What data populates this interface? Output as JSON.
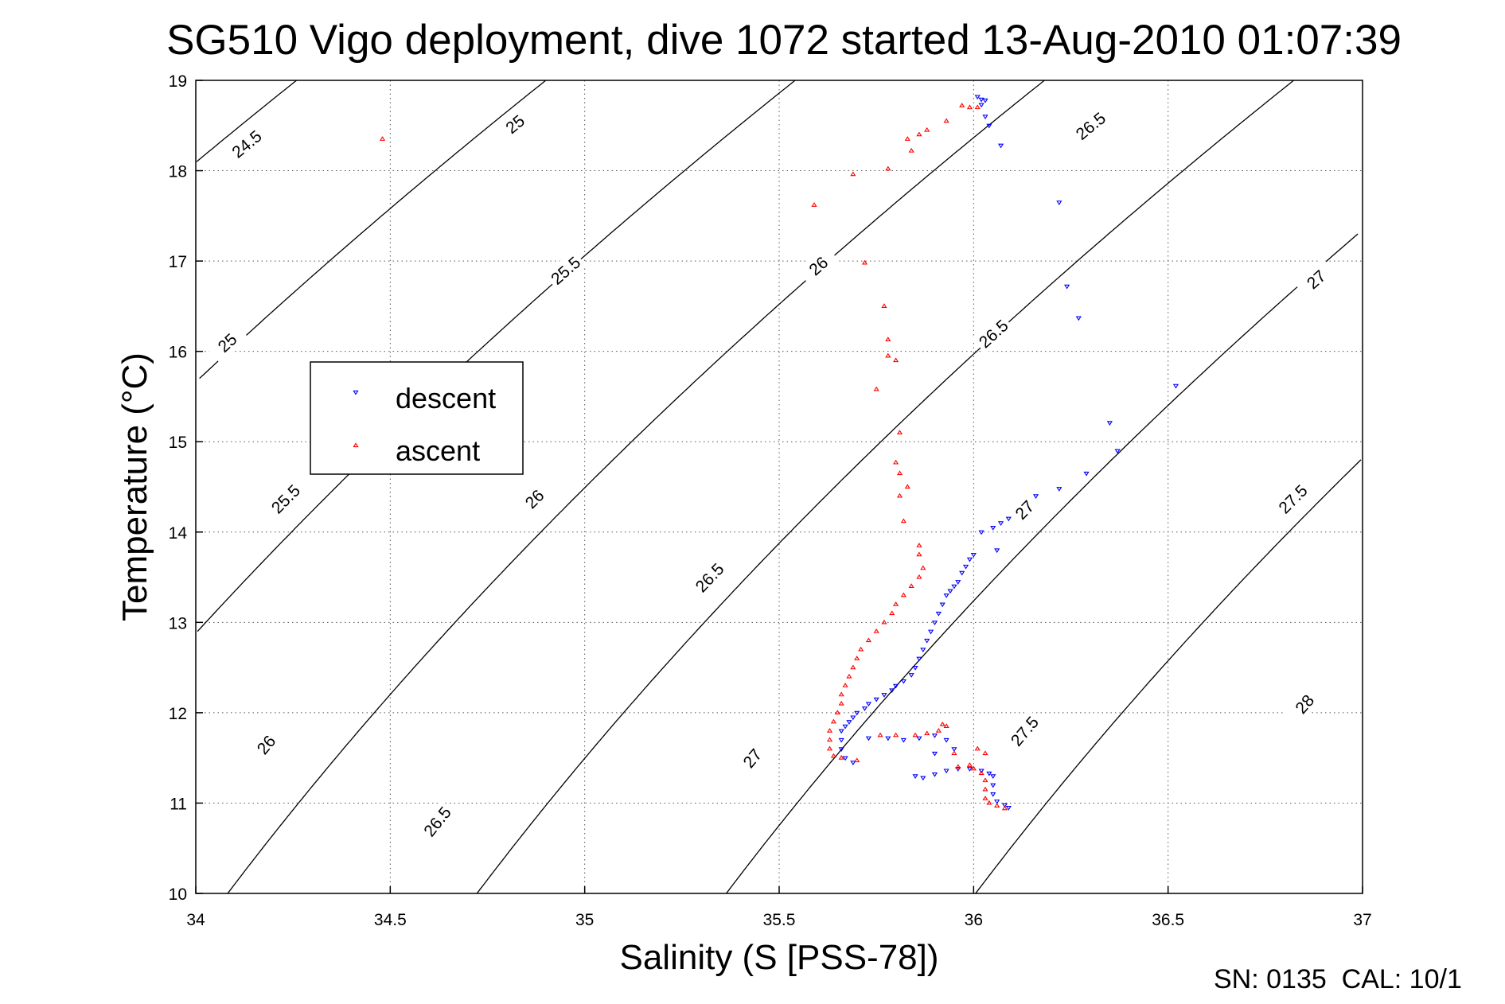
{
  "chart_data": {
    "type": "scatter",
    "title": "SG510 Vigo deployment, dive 1072 started 13-Aug-2010 01:07:39",
    "xlabel": "Salinity (S [PSS-78])",
    "ylabel": "Temperature (°C)",
    "xlim": [
      34,
      37
    ],
    "ylim": [
      10,
      19
    ],
    "xticks": [
      "34",
      "34.5",
      "35",
      "35.5",
      "36",
      "36.5",
      "37"
    ],
    "yticks": [
      "10",
      "11",
      "12",
      "13",
      "14",
      "15",
      "16",
      "17",
      "18",
      "19"
    ],
    "grid": true,
    "legend_position": "left",
    "colors": {
      "descent": "#0000ff",
      "ascent": "#ff0000",
      "contour": "#000000"
    },
    "density_contours": {
      "levels": [
        24.5,
        25,
        25.5,
        26,
        26.5,
        27,
        27.5,
        28
      ],
      "labels": [
        {
          "text": "24.5",
          "x": 34.13,
          "y": 18.3
        },
        {
          "text": "25",
          "x": 34.82,
          "y": 18.52
        },
        {
          "text": "25",
          "x": 34.08,
          "y": 16.1
        },
        {
          "text": "25.5",
          "x": 34.95,
          "y": 16.9
        },
        {
          "text": "25.5",
          "x": 34.23,
          "y": 14.37
        },
        {
          "text": "26",
          "x": 35.6,
          "y": 16.95
        },
        {
          "text": "26",
          "x": 34.87,
          "y": 14.37
        },
        {
          "text": "26",
          "x": 34.18,
          "y": 11.65
        },
        {
          "text": "26.5",
          "x": 36.3,
          "y": 18.5
        },
        {
          "text": "26.5",
          "x": 36.05,
          "y": 16.2
        },
        {
          "text": "26.5",
          "x": 35.32,
          "y": 13.5
        },
        {
          "text": "26.5",
          "x": 34.62,
          "y": 10.8
        },
        {
          "text": "27",
          "x": 36.88,
          "y": 16.8
        },
        {
          "text": "27",
          "x": 36.13,
          "y": 14.25
        },
        {
          "text": "27",
          "x": 35.43,
          "y": 11.5
        },
        {
          "text": "27.5",
          "x": 36.82,
          "y": 14.37
        },
        {
          "text": "27.5",
          "x": 36.13,
          "y": 11.8
        },
        {
          "text": "28",
          "x": 36.85,
          "y": 12.1
        }
      ]
    },
    "series": [
      {
        "name": "descent",
        "marker": "triangle-down",
        "points": [
          [
            36.01,
            18.82
          ],
          [
            36.02,
            18.79
          ],
          [
            36.03,
            18.78
          ],
          [
            36.02,
            18.73
          ],
          [
            36.03,
            18.6
          ],
          [
            36.04,
            18.5
          ],
          [
            36.07,
            18.28
          ],
          [
            36.22,
            17.65
          ],
          [
            36.24,
            16.72
          ],
          [
            36.27,
            16.37
          ],
          [
            36.52,
            15.62
          ],
          [
            36.35,
            15.21
          ],
          [
            36.37,
            14.9
          ],
          [
            36.29,
            14.65
          ],
          [
            36.22,
            14.48
          ],
          [
            36.16,
            14.4
          ],
          [
            36.09,
            14.15
          ],
          [
            36.07,
            14.1
          ],
          [
            36.05,
            14.05
          ],
          [
            36.02,
            14.0
          ],
          [
            36.06,
            13.8
          ],
          [
            36.0,
            13.75
          ],
          [
            35.99,
            13.7
          ],
          [
            35.98,
            13.62
          ],
          [
            35.97,
            13.55
          ],
          [
            35.96,
            13.45
          ],
          [
            35.95,
            13.4
          ],
          [
            35.94,
            13.35
          ],
          [
            35.93,
            13.3
          ],
          [
            35.92,
            13.2
          ],
          [
            35.91,
            13.1
          ],
          [
            35.9,
            13.0
          ],
          [
            35.89,
            12.9
          ],
          [
            35.88,
            12.8
          ],
          [
            35.87,
            12.7
          ],
          [
            35.86,
            12.6
          ],
          [
            35.85,
            12.5
          ],
          [
            35.84,
            12.42
          ],
          [
            35.82,
            12.35
          ],
          [
            35.8,
            12.3
          ],
          [
            35.79,
            12.25
          ],
          [
            35.77,
            12.2
          ],
          [
            35.75,
            12.15
          ],
          [
            35.73,
            12.1
          ],
          [
            35.72,
            12.05
          ],
          [
            35.7,
            12.0
          ],
          [
            35.69,
            11.95
          ],
          [
            35.68,
            11.9
          ],
          [
            35.67,
            11.85
          ],
          [
            35.66,
            11.8
          ],
          [
            35.66,
            11.7
          ],
          [
            35.66,
            11.6
          ],
          [
            35.67,
            11.5
          ],
          [
            35.69,
            11.45
          ],
          [
            35.73,
            11.72
          ],
          [
            35.78,
            11.72
          ],
          [
            35.82,
            11.7
          ],
          [
            35.86,
            11.72
          ],
          [
            35.9,
            11.75
          ],
          [
            35.93,
            11.7
          ],
          [
            35.85,
            11.3
          ],
          [
            35.87,
            11.28
          ],
          [
            35.9,
            11.32
          ],
          [
            35.93,
            11.36
          ],
          [
            35.96,
            11.38
          ],
          [
            35.99,
            11.38
          ],
          [
            36.02,
            11.36
          ],
          [
            36.04,
            11.33
          ],
          [
            36.05,
            11.3
          ],
          [
            36.05,
            11.2
          ],
          [
            36.05,
            11.1
          ],
          [
            36.06,
            11.02
          ],
          [
            36.08,
            10.98
          ],
          [
            36.09,
            10.95
          ],
          [
            35.9,
            11.55
          ],
          [
            35.95,
            11.6
          ]
        ]
      },
      {
        "name": "ascent",
        "marker": "triangle-up",
        "points": [
          [
            34.48,
            18.35
          ],
          [
            35.97,
            18.72
          ],
          [
            35.99,
            18.7
          ],
          [
            36.01,
            18.7
          ],
          [
            35.93,
            18.55
          ],
          [
            35.88,
            18.45
          ],
          [
            35.86,
            18.4
          ],
          [
            35.83,
            18.35
          ],
          [
            35.84,
            18.22
          ],
          [
            35.78,
            18.02
          ],
          [
            35.69,
            17.96
          ],
          [
            35.59,
            17.62
          ],
          [
            35.72,
            16.98
          ],
          [
            35.77,
            16.5
          ],
          [
            35.78,
            16.13
          ],
          [
            35.78,
            15.95
          ],
          [
            35.8,
            15.9
          ],
          [
            35.75,
            15.58
          ],
          [
            35.81,
            15.1
          ],
          [
            35.8,
            14.77
          ],
          [
            35.81,
            14.65
          ],
          [
            35.83,
            14.5
          ],
          [
            35.81,
            14.4
          ],
          [
            35.82,
            14.12
          ],
          [
            35.86,
            13.85
          ],
          [
            35.86,
            13.75
          ],
          [
            35.87,
            13.6
          ],
          [
            35.86,
            13.5
          ],
          [
            35.84,
            13.4
          ],
          [
            35.82,
            13.3
          ],
          [
            35.8,
            13.2
          ],
          [
            35.79,
            13.1
          ],
          [
            35.77,
            13.0
          ],
          [
            35.75,
            12.9
          ],
          [
            35.73,
            12.8
          ],
          [
            35.71,
            12.7
          ],
          [
            35.7,
            12.6
          ],
          [
            35.69,
            12.5
          ],
          [
            35.68,
            12.4
          ],
          [
            35.67,
            12.3
          ],
          [
            35.66,
            12.2
          ],
          [
            35.66,
            12.1
          ],
          [
            35.65,
            12.0
          ],
          [
            35.64,
            11.9
          ],
          [
            35.63,
            11.8
          ],
          [
            35.63,
            11.7
          ],
          [
            35.63,
            11.6
          ],
          [
            35.64,
            11.52
          ],
          [
            35.66,
            11.5
          ],
          [
            35.7,
            11.47
          ],
          [
            35.76,
            11.75
          ],
          [
            35.8,
            11.75
          ],
          [
            35.85,
            11.75
          ],
          [
            35.88,
            11.77
          ],
          [
            35.91,
            11.8
          ],
          [
            35.93,
            11.85
          ],
          [
            35.92,
            11.87
          ],
          [
            35.95,
            11.55
          ],
          [
            36.01,
            11.6
          ],
          [
            36.03,
            11.55
          ],
          [
            35.96,
            11.4
          ],
          [
            36.0,
            11.38
          ],
          [
            36.02,
            11.33
          ],
          [
            36.03,
            11.25
          ],
          [
            36.03,
            11.15
          ],
          [
            36.03,
            11.05
          ],
          [
            36.04,
            11.0
          ],
          [
            36.06,
            10.97
          ],
          [
            36.08,
            10.94
          ],
          [
            35.99,
            11.42
          ]
        ]
      }
    ]
  },
  "footer_text": "SN: 0135  CAL: 10/1"
}
